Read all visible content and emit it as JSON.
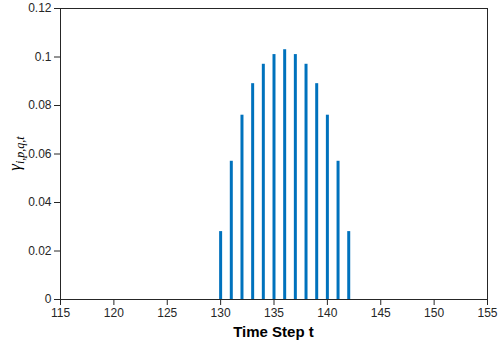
{
  "chart_data": {
    "type": "stem",
    "xlabel": "Time Step t",
    "ylabel": {
      "text": "γ",
      "subscript": "i,p,q,t"
    },
    "x": [
      130,
      131,
      132,
      133,
      134,
      135,
      136,
      137,
      138,
      139,
      140,
      141,
      142
    ],
    "values": [
      0.028,
      0.057,
      0.076,
      0.089,
      0.097,
      0.101,
      0.103,
      0.101,
      0.097,
      0.089,
      0.076,
      0.057,
      0.028
    ],
    "color": "#0072bd",
    "xlim": [
      115,
      155
    ],
    "xticks": [
      115,
      120,
      125,
      130,
      135,
      140,
      145,
      150,
      155
    ],
    "ylim": [
      0,
      0.12
    ],
    "yticks": [
      0,
      0.02,
      0.04,
      0.06,
      0.08,
      0.1,
      0.12
    ],
    "grid": false
  }
}
